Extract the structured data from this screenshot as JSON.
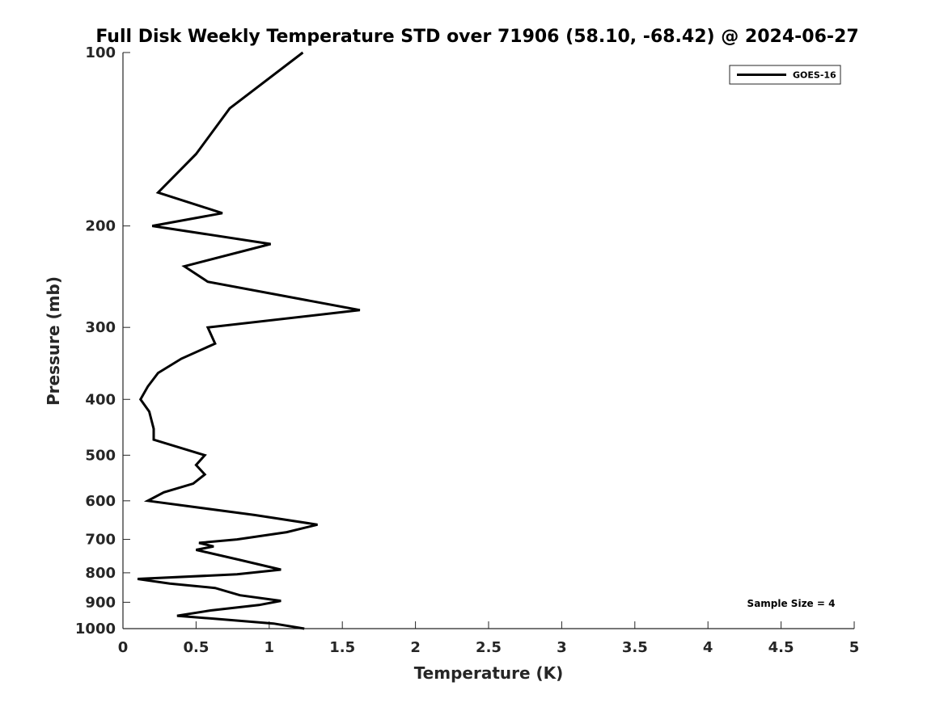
{
  "chart_data": {
    "type": "line",
    "title": "Full Disk Weekly Temperature STD over 71906 (58.10, -68.42) @ 2024-06-27",
    "xlabel": "Temperature (K)",
    "ylabel": "Pressure (mb)",
    "xlim": [
      0,
      5
    ],
    "ylim": [
      100,
      1000
    ],
    "y_scale": "log",
    "y_reversed": true,
    "x_ticks": [
      0,
      0.5,
      1,
      1.5,
      2,
      2.5,
      3,
      3.5,
      4,
      4.5,
      5
    ],
    "x_tick_labels": [
      "0",
      "0.5",
      "1",
      "1.5",
      "2",
      "2.5",
      "3",
      "3.5",
      "4",
      "4.5",
      "5"
    ],
    "y_ticks": [
      100,
      200,
      300,
      400,
      500,
      600,
      700,
      800,
      900,
      1000
    ],
    "y_tick_labels": [
      "100",
      "200",
      "300",
      "400",
      "500",
      "600",
      "700",
      "800",
      "900",
      "1000"
    ],
    "grid": false,
    "legend_position": "top-right",
    "annotation": "Sample Size = 4",
    "series": [
      {
        "name": "GOES-16",
        "color": "#000000",
        "points": [
          [
            1.23,
            100
          ],
          [
            0.73,
            125
          ],
          [
            0.5,
            150
          ],
          [
            0.24,
            175
          ],
          [
            0.68,
            190
          ],
          [
            0.2,
            200
          ],
          [
            1.01,
            215
          ],
          [
            0.42,
            235
          ],
          [
            0.58,
            250
          ],
          [
            1.62,
            280
          ],
          [
            0.58,
            300
          ],
          [
            0.63,
            320
          ],
          [
            0.4,
            340
          ],
          [
            0.24,
            360
          ],
          [
            0.17,
            380
          ],
          [
            0.12,
            400
          ],
          [
            0.18,
            420
          ],
          [
            0.21,
            450
          ],
          [
            0.21,
            470
          ],
          [
            0.56,
            500
          ],
          [
            0.5,
            520
          ],
          [
            0.56,
            540
          ],
          [
            0.48,
            560
          ],
          [
            0.28,
            580
          ],
          [
            0.17,
            600
          ],
          [
            0.9,
            635
          ],
          [
            1.33,
            660
          ],
          [
            1.12,
            680
          ],
          [
            0.78,
            700
          ],
          [
            0.52,
            710
          ],
          [
            0.62,
            720
          ],
          [
            0.5,
            730
          ],
          [
            0.8,
            760
          ],
          [
            1.08,
            790
          ],
          [
            0.78,
            805
          ],
          [
            0.1,
            820
          ],
          [
            0.32,
            835
          ],
          [
            0.63,
            850
          ],
          [
            0.8,
            875
          ],
          [
            1.08,
            895
          ],
          [
            0.93,
            910
          ],
          [
            0.6,
            930
          ],
          [
            0.37,
            950
          ],
          [
            0.6,
            960
          ],
          [
            1.03,
            980
          ],
          [
            1.24,
            1000
          ]
        ]
      }
    ]
  }
}
